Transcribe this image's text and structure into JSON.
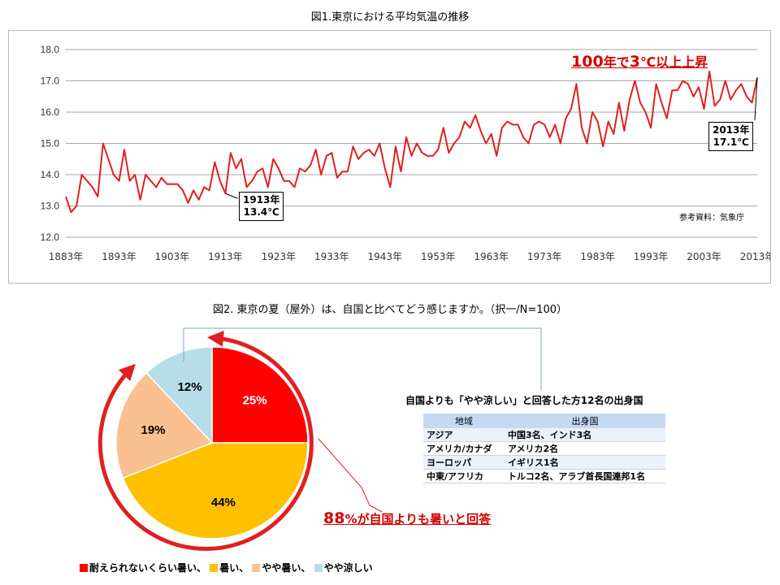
{
  "chart1": {
    "title": "図1.東京における平均気温の推移",
    "source": "参考資料：気象庁",
    "annotation_highlight": {
      "num1": "100",
      "text1": "年で",
      "num2": "3",
      "text2": "℃以上上昇"
    },
    "callout_1913": {
      "year": "1913年",
      "value": "13.4℃"
    },
    "callout_2013": {
      "year": "2013年",
      "value": "17.1℃"
    }
  },
  "chart2": {
    "title": "図2. 東京の夏（屋外）は、自国と比べてどう感じますか。（択一/N=100）",
    "highlight": {
      "num": "88",
      "text": "%が自国よりも暑いと回答"
    },
    "table_title": "自国よりも「やや涼しい」と回答した方12名の出身国",
    "table": {
      "headers": [
        "地域",
        "出身国"
      ],
      "rows": [
        [
          "アジア",
          "中国3名、インド3名"
        ],
        [
          "アメリカ/カナダ",
          "アメリカ2名"
        ],
        [
          "ヨーロッパ",
          "イギリス1名"
        ],
        [
          "中東/アフリカ",
          "トルコ2名、アラブ首長国連邦1名"
        ]
      ]
    },
    "legend": [
      {
        "label": "耐えられないくらい暑い、",
        "color": "#ff0000"
      },
      {
        "label": "暑い、",
        "color": "#ffc000"
      },
      {
        "label": "やや暑い、",
        "color": "#fac090"
      },
      {
        "label": "やや涼しい",
        "color": "#b7dde8"
      }
    ]
  },
  "chart_data": [
    {
      "type": "line",
      "title": "図1.東京における平均気温の推移",
      "xlabel": "",
      "ylabel": "",
      "ylim": [
        12.0,
        18.0
      ],
      "yticks": [
        "12.0",
        "13.0",
        "14.0",
        "15.0",
        "16.0",
        "17.0",
        "18.0"
      ],
      "xlim": [
        1883,
        2013
      ],
      "xticks": [
        "1883年",
        "1893年",
        "1903年",
        "1913年",
        "1923年",
        "1933年",
        "1943年",
        "1953年",
        "1963年",
        "1973年",
        "1983年",
        "1993年",
        "2003年",
        "2013年"
      ],
      "grid": true,
      "color": "#e02020",
      "series": [
        {
          "x": [
            1883,
            1884,
            1885,
            1886,
            1887,
            1888,
            1889,
            1890,
            1891,
            1892,
            1893,
            1894,
            1895,
            1896,
            1897,
            1898,
            1899,
            1900,
            1901,
            1902,
            1903,
            1904,
            1905,
            1906,
            1907,
            1908,
            1909,
            1910,
            1911,
            1912,
            1913,
            1914,
            1915,
            1916,
            1917,
            1918,
            1919,
            1920,
            1921,
            1922,
            1923,
            1924,
            1925,
            1926,
            1927,
            1928,
            1929,
            1930,
            1931,
            1932,
            1933,
            1934,
            1935,
            1936,
            1937,
            1938,
            1939,
            1940,
            1941,
            1942,
            1943,
            1944,
            1945,
            1946,
            1947,
            1948,
            1949,
            1950,
            1951,
            1952,
            1953,
            1954,
            1955,
            1956,
            1957,
            1958,
            1959,
            1960,
            1961,
            1962,
            1963,
            1964,
            1965,
            1966,
            1967,
            1968,
            1969,
            1970,
            1971,
            1972,
            1973,
            1974,
            1975,
            1976,
            1977,
            1978,
            1979,
            1980,
            1981,
            1982,
            1983,
            1984,
            1985,
            1986,
            1987,
            1988,
            1989,
            1990,
            1991,
            1992,
            1993,
            1994,
            1995,
            1996,
            1997,
            1998,
            1999,
            2000,
            2001,
            2002,
            2003,
            2004,
            2005,
            2006,
            2007,
            2008,
            2009,
            2010,
            2011,
            2012,
            2013
          ],
          "values": [
            13.3,
            12.8,
            13.0,
            14.0,
            13.8,
            13.6,
            13.3,
            15.0,
            14.5,
            14.0,
            13.8,
            14.8,
            13.8,
            14.0,
            13.2,
            14.0,
            13.8,
            13.6,
            13.9,
            13.7,
            13.7,
            13.7,
            13.5,
            13.1,
            13.5,
            13.2,
            13.6,
            13.5,
            14.4,
            13.8,
            13.4,
            14.7,
            14.2,
            14.5,
            13.6,
            13.8,
            14.1,
            14.2,
            13.6,
            14.5,
            14.2,
            13.8,
            13.8,
            13.6,
            14.2,
            14.1,
            14.3,
            14.8,
            14.0,
            14.6,
            14.7,
            13.9,
            14.1,
            14.1,
            14.9,
            14.5,
            14.7,
            14.8,
            14.6,
            15.0,
            14.2,
            13.6,
            14.9,
            14.1,
            15.2,
            14.6,
            15.0,
            14.7,
            14.6,
            14.6,
            14.8,
            15.5,
            14.7,
            15.0,
            15.2,
            15.7,
            15.5,
            15.9,
            15.4,
            15.0,
            15.3,
            14.6,
            15.5,
            15.7,
            15.6,
            15.6,
            15.2,
            15.0,
            15.6,
            15.7,
            15.6,
            15.2,
            15.6,
            15.0,
            15.8,
            16.1,
            16.9,
            15.5,
            15.0,
            16.0,
            15.7,
            14.9,
            15.7,
            15.3,
            16.3,
            15.4,
            16.4,
            17.0,
            16.3,
            16.0,
            15.5,
            16.9,
            16.3,
            15.8,
            16.7,
            16.7,
            17.0,
            16.9,
            16.5,
            16.8,
            16.1,
            17.3,
            16.2,
            16.4,
            17.0,
            16.4,
            16.7,
            16.9,
            16.5,
            16.3,
            17.1
          ]
        }
      ]
    },
    {
      "type": "pie",
      "title": "",
      "categories": [
        "耐えられないくらい暑い",
        "暑い",
        "やや暑い",
        "やや涼しい"
      ],
      "values": [
        25,
        44,
        19,
        12
      ],
      "labels": [
        "25%",
        "44%",
        "19%",
        "12%"
      ],
      "colors": [
        "#ff0000",
        "#ffc000",
        "#fac090",
        "#b7dde8"
      ]
    }
  ]
}
